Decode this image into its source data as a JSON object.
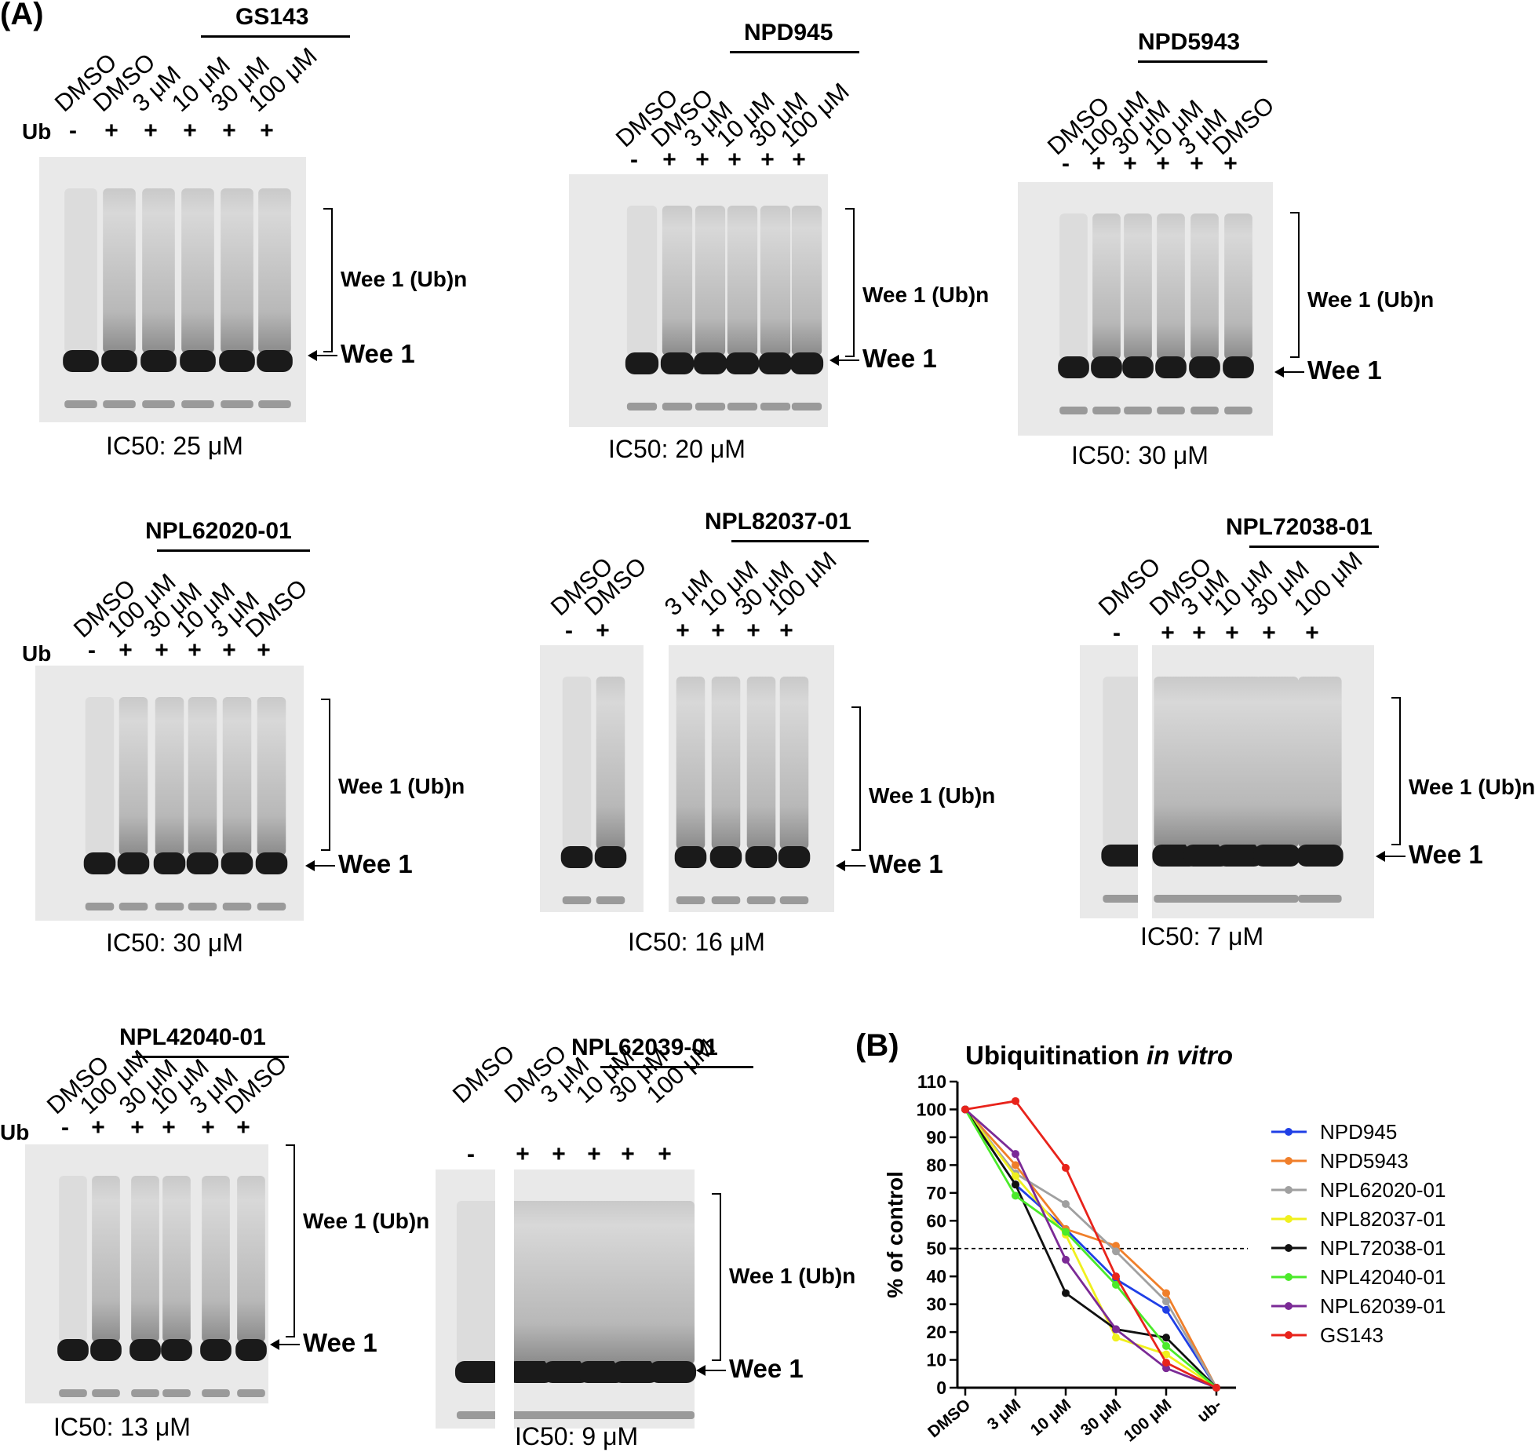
{
  "figure": {
    "panel_a_label": "(A)",
    "panel_b_label": "(B)",
    "ub_row_label": "Ub",
    "bracket_label": "Wee 1 (Ub)n",
    "band_label": "Wee 1",
    "band_color": "#1a1a1a",
    "gels": [
      {
        "compound": "GS143",
        "lanes": [
          "DMSO",
          "DMSO",
          "3 μM",
          "10 μM",
          "30 μM",
          "100 μM"
        ],
        "ub": [
          "-",
          "+",
          "+",
          "+",
          "+",
          "+"
        ],
        "ic50": "IC50: 25 μM"
      },
      {
        "compound": "NPD945",
        "lanes": [
          "DMSO",
          "DMSO",
          "3 μM",
          "10 μM",
          "30 μM",
          "100 μM"
        ],
        "ub": [
          "-",
          "+",
          "+",
          "+",
          "+",
          "+"
        ],
        "ic50": "IC50: 20 μM"
      },
      {
        "compound": "NPD5943",
        "lanes": [
          "DMSO",
          "100 μM",
          "30 μM",
          "10 μM",
          "3 μM",
          "DMSO"
        ],
        "ub": [
          "-",
          "+",
          "+",
          "+",
          "+",
          "+"
        ],
        "ic50": "IC50: 30 μM"
      },
      {
        "compound": "NPL62020-01",
        "lanes": [
          "DMSO",
          "100 μM",
          "30 μM",
          "10 μM",
          "3 μM",
          "DMSO"
        ],
        "ub": [
          "-",
          "+",
          "+",
          "+",
          "+",
          "+"
        ],
        "ic50": "IC50: 30 μM"
      },
      {
        "compound": "NPL82037-01",
        "lanes": [
          "DMSO",
          "DMSO",
          "3 μM",
          "10 μM",
          "30 μM",
          "100 μM"
        ],
        "ub": [
          "-",
          "+",
          "+",
          "+",
          "+",
          "+"
        ],
        "ic50": "IC50: 16 μM"
      },
      {
        "compound": "NPL72038-01",
        "lanes": [
          "DMSO",
          "DMSO",
          "3 μM",
          "10 μM",
          "30 μM",
          "100 μM"
        ],
        "ub": [
          "-",
          "+",
          "+",
          "+",
          "+",
          "+"
        ],
        "ic50": "IC50: 7 μM"
      },
      {
        "compound": "NPL42040-01",
        "lanes": [
          "DMSO",
          "100 μM",
          "30 μM",
          "10 μM",
          "3 μM",
          "DMSO"
        ],
        "ub": [
          "-",
          "+",
          "+",
          "+",
          "+",
          "+"
        ],
        "ic50": "IC50: 13 μM"
      },
      {
        "compound": "NPL62039-01",
        "lanes": [
          "DMSO",
          "DMSO",
          "3 μM",
          "10 μM",
          "30 μM",
          "100 μM"
        ],
        "ub": [
          "-",
          "+",
          "+",
          "+",
          "+",
          "+"
        ],
        "ic50": "IC50: 9 μM"
      }
    ]
  },
  "chart_data": {
    "type": "line",
    "title": "Ubiquitination",
    "title_italic": "in vitro",
    "ylabel": "% of control",
    "xlabel": "",
    "categories": [
      "DMSO",
      "3 μM",
      "10 μM",
      "30 μM",
      "100 μM",
      "ub-"
    ],
    "ylim": [
      0,
      110
    ],
    "yticks": [
      0,
      10,
      20,
      30,
      40,
      50,
      60,
      70,
      80,
      90,
      100,
      110
    ],
    "reference_line": 50,
    "legend_position": "right",
    "series": [
      {
        "name": "NPD945",
        "color": "#1f3fe6",
        "values": [
          100,
          73,
          57,
          39,
          28,
          0
        ]
      },
      {
        "name": "NPD5943",
        "color": "#f07f2a",
        "values": [
          100,
          80,
          57,
          51,
          34,
          0
        ]
      },
      {
        "name": "NPL62020-01",
        "color": "#a0a0a0",
        "values": [
          100,
          77,
          66,
          49,
          31,
          0
        ]
      },
      {
        "name": "NPL82037-01",
        "color": "#f0f01e",
        "values": [
          100,
          76,
          55,
          18,
          12,
          0
        ]
      },
      {
        "name": "NPL72038-01",
        "color": "#111111",
        "values": [
          100,
          73,
          34,
          21,
          18,
          0
        ]
      },
      {
        "name": "NPL42040-01",
        "color": "#4bea2a",
        "values": [
          100,
          69,
          56,
          37,
          15,
          0
        ]
      },
      {
        "name": "NPL62039-01",
        "color": "#7b2a96",
        "values": [
          100,
          84,
          46,
          21,
          7,
          0
        ]
      },
      {
        "name": "GS143",
        "color": "#e8231b",
        "values": [
          100,
          103,
          79,
          40,
          9,
          0
        ]
      }
    ]
  }
}
